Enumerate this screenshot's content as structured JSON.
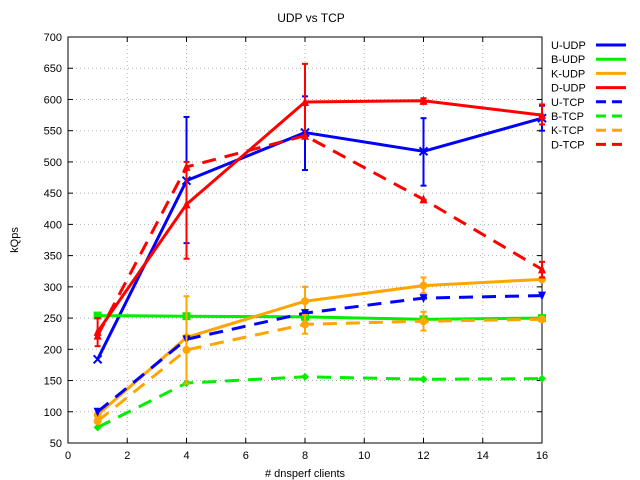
{
  "chart_data": {
    "type": "line",
    "title": "UDP vs TCP",
    "xlabel": "# dnsperf clients",
    "ylabel": "kQps",
    "xlim": [
      0,
      16
    ],
    "ylim": [
      50,
      700
    ],
    "xticks": [
      0,
      2,
      4,
      6,
      8,
      10,
      12,
      14,
      16
    ],
    "yticks": [
      50,
      100,
      150,
      200,
      250,
      300,
      350,
      400,
      450,
      500,
      550,
      600,
      650,
      700
    ],
    "grid": true,
    "legend_position": "top-right",
    "series": [
      {
        "name": "U-UDP",
        "color": "#0000ff",
        "dash": false,
        "marker": "x",
        "x": [
          1,
          4,
          8,
          12,
          16
        ],
        "y": [
          184,
          470,
          547,
          517,
          570
        ],
        "err_lo": [
          null,
          370,
          487,
          462,
          550
        ],
        "err_hi": [
          null,
          572,
          605,
          570,
          590
        ]
      },
      {
        "name": "B-UDP",
        "color": "#00ee00",
        "dash": false,
        "marker": "square",
        "x": [
          1,
          4,
          8,
          12,
          16
        ],
        "y": [
          254,
          253,
          252,
          248,
          250
        ],
        "err_lo": [
          null,
          null,
          null,
          null,
          null
        ],
        "err_hi": [
          null,
          null,
          null,
          null,
          null
        ]
      },
      {
        "name": "K-UDP",
        "color": "#ffa500",
        "dash": false,
        "marker": "circle",
        "x": [
          1,
          4,
          8,
          12,
          16
        ],
        "y": [
          95,
          219,
          277,
          302,
          312
        ],
        "err_lo": [
          null,
          null,
          255,
          290,
          null
        ],
        "err_hi": [
          null,
          null,
          300,
          315,
          null
        ]
      },
      {
        "name": "D-UDP",
        "color": "#ff0000",
        "dash": false,
        "marker": "triangle",
        "x": [
          1,
          4,
          8,
          12,
          16
        ],
        "y": [
          228,
          432,
          596,
          598,
          575
        ],
        "err_lo": [
          205,
          345,
          540,
          593,
          560
        ],
        "err_hi": [
          250,
          500,
          657,
          602,
          592
        ]
      },
      {
        "name": "U-TCP",
        "color": "#0000ff",
        "dash": true,
        "marker": "triangle-down",
        "x": [
          1,
          4,
          8,
          12,
          16
        ],
        "y": [
          100,
          216,
          258,
          282,
          286
        ],
        "err_lo": [
          null,
          null,
          null,
          null,
          null
        ],
        "err_hi": [
          null,
          null,
          null,
          null,
          null
        ]
      },
      {
        "name": "B-TCP",
        "color": "#00ee00",
        "dash": true,
        "marker": "diamond",
        "x": [
          1,
          4,
          8,
          12,
          16
        ],
        "y": [
          75,
          146,
          156,
          152,
          153
        ],
        "err_lo": [
          null,
          null,
          null,
          null,
          null
        ],
        "err_hi": [
          null,
          null,
          null,
          null,
          null
        ]
      },
      {
        "name": "K-TCP",
        "color": "#ffa500",
        "dash": true,
        "marker": "circle",
        "x": [
          1,
          4,
          8,
          12,
          16
        ],
        "y": [
          85,
          199,
          240,
          245,
          248
        ],
        "err_lo": [
          null,
          145,
          225,
          230,
          null
        ],
        "err_hi": [
          null,
          285,
          255,
          260,
          null
        ]
      },
      {
        "name": "D-TCP",
        "color": "#ff0000",
        "dash": true,
        "marker": "triangle",
        "x": [
          1,
          4,
          8,
          12,
          16
        ],
        "y": [
          222,
          492,
          542,
          440,
          328
        ],
        "err_lo": [
          null,
          null,
          null,
          null,
          315
        ],
        "err_hi": [
          null,
          null,
          null,
          null,
          340
        ]
      }
    ]
  }
}
